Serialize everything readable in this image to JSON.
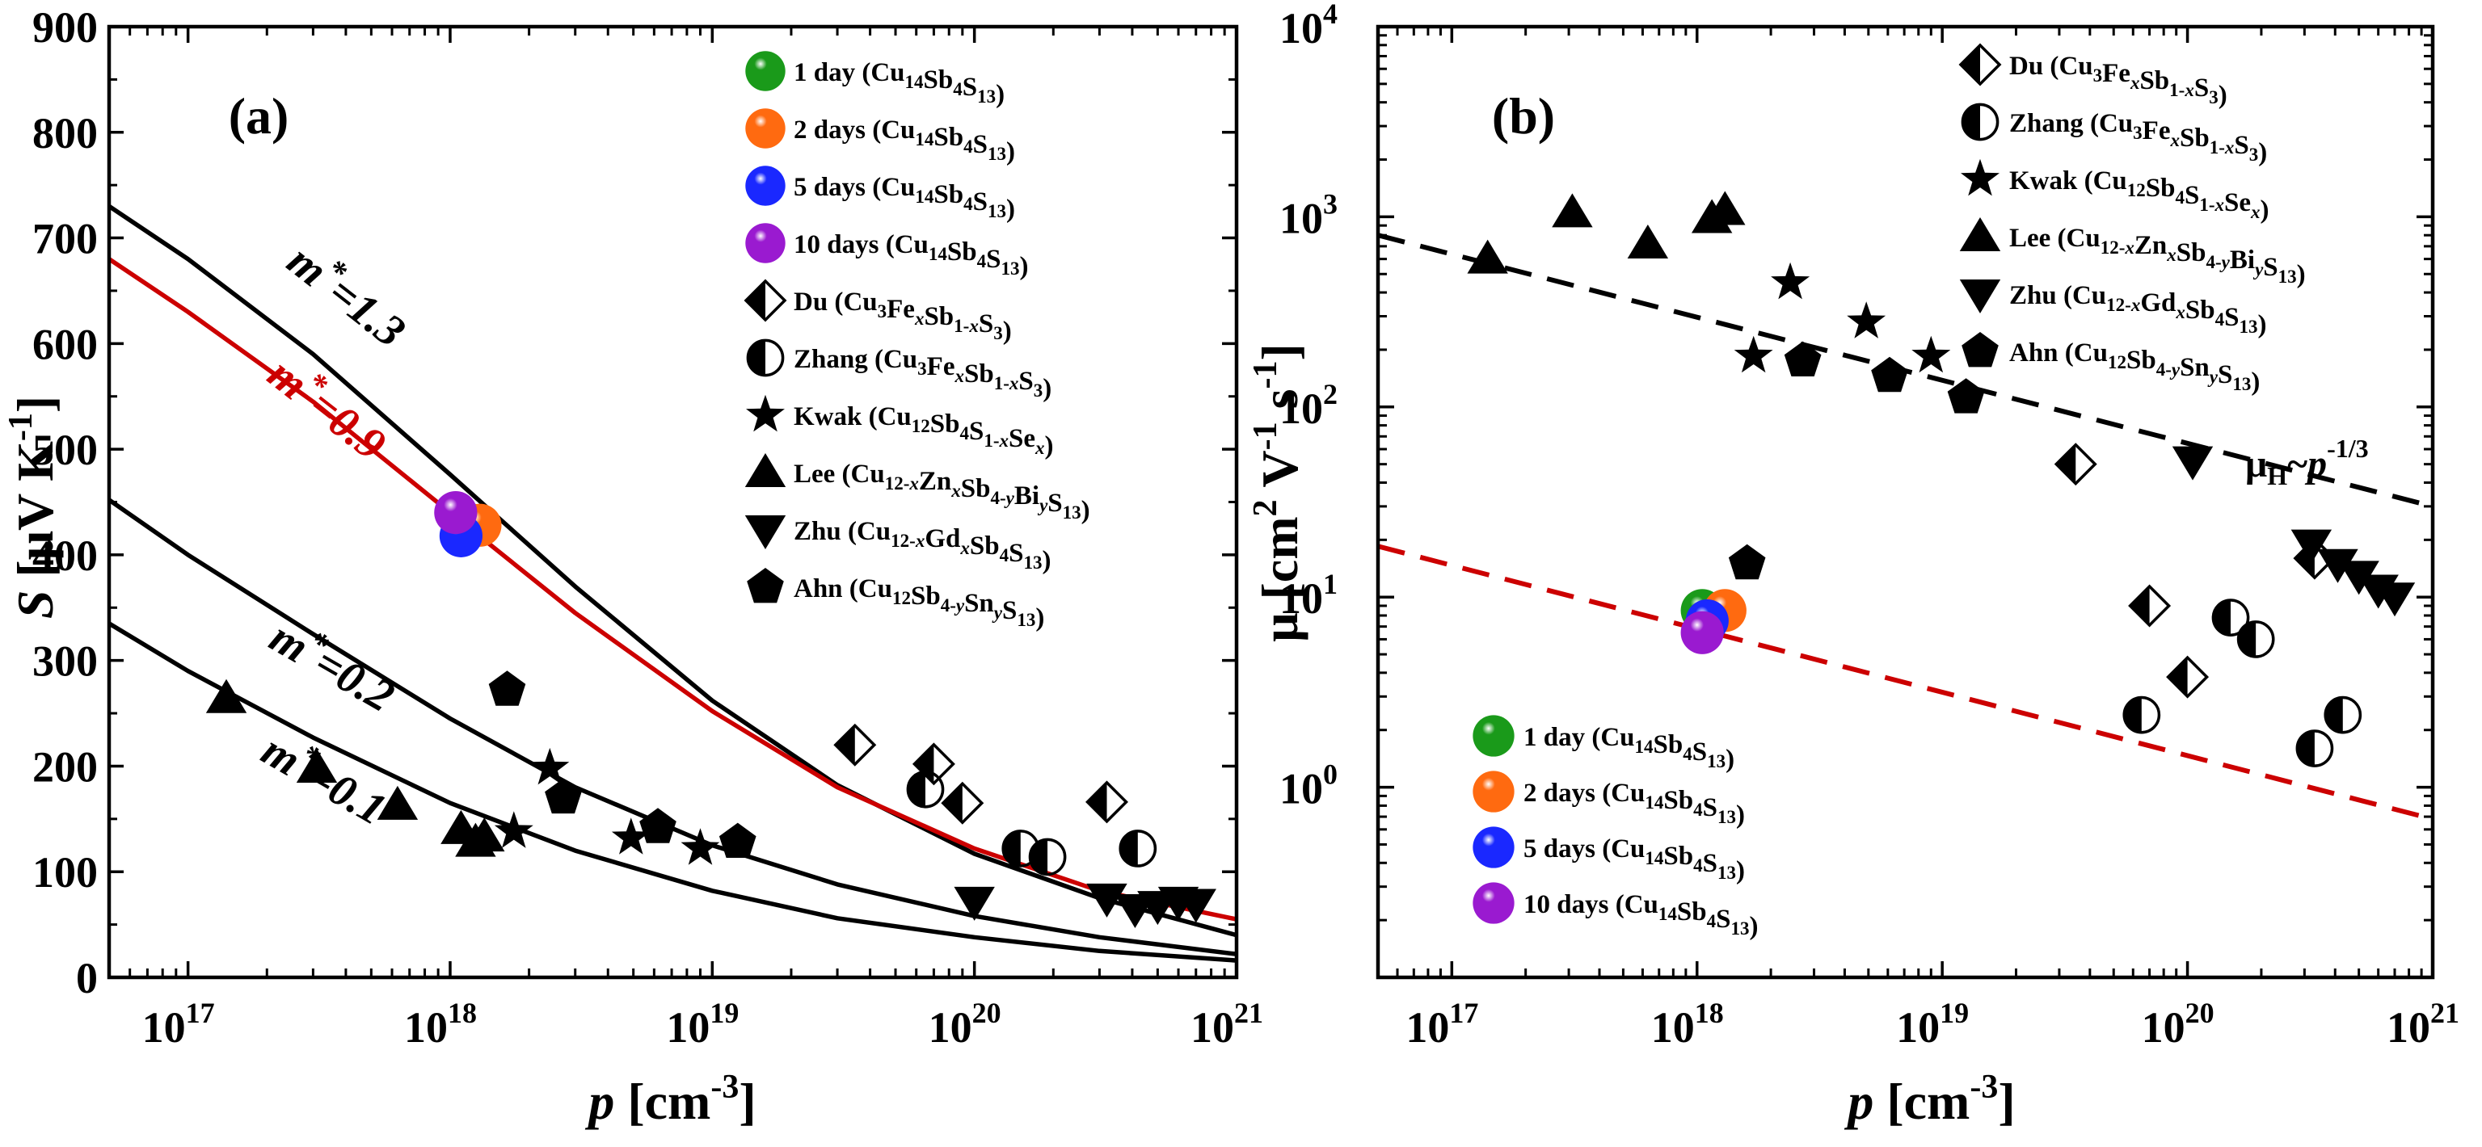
{
  "colors": {
    "black": "#000000",
    "red": "#cc0000",
    "green": "#1a9a1a",
    "orange": "#ff6a10",
    "blue": "#1a28ff",
    "purple": "#9a1ad0"
  },
  "this_work": [
    {
      "label": "1 day",
      "formula": [
        "Cu",
        "14",
        "Sb",
        "4",
        "S",
        "13"
      ],
      "color": "green"
    },
    {
      "label": "2 days",
      "formula": [
        "Cu",
        "14",
        "Sb",
        "4",
        "S",
        "13"
      ],
      "color": "orange"
    },
    {
      "label": "5 days",
      "formula": [
        "Cu",
        "14",
        "Sb",
        "4",
        "S",
        "13"
      ],
      "color": "blue"
    },
    {
      "label": "10 days",
      "formula": [
        "Cu",
        "14",
        "Sb",
        "4",
        "S",
        "13"
      ],
      "color": "purple"
    }
  ],
  "literature": [
    {
      "author": "Du",
      "symbol": "halfdiamond",
      "formula": [
        "Cu",
        "3",
        "Fe",
        "x",
        "Sb",
        "1-x",
        "S",
        "3"
      ]
    },
    {
      "author": "Zhang",
      "symbol": "halfcircle",
      "formula": [
        "Cu",
        "3",
        "Fe",
        "x",
        "Sb",
        "1-x",
        "S",
        "3"
      ]
    },
    {
      "author": "Kwak",
      "symbol": "star",
      "formula": [
        "Cu",
        "12",
        "Sb",
        "4",
        "S",
        "1-x",
        "Se",
        "x"
      ]
    },
    {
      "author": "Lee",
      "symbol": "triangle",
      "formula": [
        "Cu",
        "12-x",
        "Zn",
        "x",
        "Sb",
        "4-y",
        "Bi",
        "y",
        "S",
        "13"
      ]
    },
    {
      "author": "Zhu",
      "symbol": "triangledown",
      "formula": [
        "Cu",
        "12-x",
        "Gd",
        "x",
        "Sb",
        "4",
        "S",
        "13"
      ]
    },
    {
      "author": "Ahn",
      "symbol": "pentagon",
      "formula": [
        "Cu",
        "12",
        "Sb",
        "4-y",
        "Sn",
        "y",
        "S",
        "13"
      ]
    }
  ],
  "chart_data": [
    {
      "id": "a",
      "type": "scatter",
      "panel_label": "(a)",
      "xscale": "log",
      "xlim": [
        5e+16,
        1e+21
      ],
      "ylim": [
        0,
        900
      ],
      "xticks": [
        {
          "v": 1e+17,
          "base": "10",
          "exp": "17"
        },
        {
          "v": 1e+18,
          "base": "10",
          "exp": "18"
        },
        {
          "v": 1e+19,
          "base": "10",
          "exp": "19"
        },
        {
          "v": 1e+20,
          "base": "10",
          "exp": "20"
        },
        {
          "v": 1e+21,
          "base": "10",
          "exp": "21"
        }
      ],
      "yticks": [
        "0",
        "100",
        "200",
        "300",
        "400",
        "500",
        "600",
        "700",
        "800",
        "900"
      ],
      "xlabel": {
        "var": "p",
        "unit": " [cm",
        "exp": "-3",
        "close": "]"
      },
      "ylabel": {
        "var": "S",
        "unit": " [μV K",
        "exp": "-1",
        "close": "]"
      },
      "legend_position": "top-right",
      "curves": [
        {
          "name": "m*=1.3",
          "label_main": "m",
          "label_rest": "=1.3",
          "color": "black",
          "points": [
            [
              5e+16,
              730
            ],
            [
              1e+17,
              680
            ],
            [
              3e+17,
              590
            ],
            [
              1e+18,
              476
            ],
            [
              3e+18,
              370
            ],
            [
              1e+19,
              262
            ],
            [
              3e+19,
              182
            ],
            [
              1e+20,
              117
            ],
            [
              3e+20,
              75
            ],
            [
              1e+21,
              40
            ]
          ]
        },
        {
          "name": "m*=0.9",
          "label_main": "m",
          "label_rest": "=0.9",
          "color": "red",
          "points": [
            [
              5e+16,
              680
            ],
            [
              1e+17,
              630
            ],
            [
              3e+17,
              545
            ],
            [
              1e+18,
              440
            ],
            [
              3e+18,
              345
            ],
            [
              1e+19,
              252
            ],
            [
              3e+19,
              180
            ],
            [
              1e+20,
              122
            ],
            [
              3e+20,
              82
            ],
            [
              1e+21,
              55
            ]
          ]
        },
        {
          "name": "m*=0.2",
          "label_main": "m",
          "label_rest": "=0.2",
          "color": "black",
          "points": [
            [
              5e+16,
              452
            ],
            [
              1e+17,
              400
            ],
            [
              3e+17,
              325
            ],
            [
              1e+18,
              245
            ],
            [
              3e+18,
              180
            ],
            [
              1e+19,
              125
            ],
            [
              3e+19,
              88
            ],
            [
              1e+20,
              58
            ],
            [
              3e+20,
              38
            ],
            [
              1e+21,
              22
            ]
          ]
        },
        {
          "name": "m*=0.1",
          "label_main": "m",
          "label_rest": "=0.1",
          "color": "black",
          "points": [
            [
              5e+16,
              335
            ],
            [
              1e+17,
              290
            ],
            [
              3e+17,
              227
            ],
            [
              1e+18,
              165
            ],
            [
              3e+18,
              120
            ],
            [
              1e+19,
              82
            ],
            [
              3e+19,
              56
            ],
            [
              1e+20,
              38
            ],
            [
              3e+20,
              25
            ],
            [
              1e+21,
              16
            ]
          ]
        }
      ],
      "series": [
        {
          "name": "1 day",
          "symbol": "sphere",
          "color": "green",
          "points": [
            [
              1.15e+18,
              430
            ]
          ]
        },
        {
          "name": "2 days",
          "symbol": "sphere",
          "color": "orange",
          "points": [
            [
              1.3e+18,
              428
            ]
          ]
        },
        {
          "name": "5 days",
          "symbol": "sphere",
          "color": "blue",
          "points": [
            [
              1.1e+18,
              418
            ]
          ]
        },
        {
          "name": "10 days",
          "symbol": "sphere",
          "color": "purple",
          "points": [
            [
              1.05e+18,
              440
            ]
          ]
        },
        {
          "name": "Du",
          "symbol": "halfdiamond",
          "points": [
            [
              3.5e+19,
              220
            ],
            [
              7e+19,
              202
            ],
            [
              9e+19,
              165
            ],
            [
              3.2e+20,
              166
            ]
          ]
        },
        {
          "name": "Zhang",
          "symbol": "halfcircle",
          "points": [
            [
              6.5e+19,
              178
            ],
            [
              1.5e+20,
              122
            ],
            [
              1.9e+20,
              114
            ],
            [
              4.2e+20,
              122
            ]
          ]
        },
        {
          "name": "Kwak",
          "symbol": "star",
          "points": [
            [
              1.75e+18,
              138
            ],
            [
              2.4e+18,
              198
            ],
            [
              4.9e+18,
              132
            ],
            [
              9e+18,
              122
            ]
          ]
        },
        {
          "name": "Lee",
          "symbol": "triangle",
          "points": [
            [
              1.4e+17,
              264
            ],
            [
              3.1e+17,
              198
            ],
            [
              6.3e+17,
              163
            ],
            [
              1.1e+18,
              140
            ],
            [
              1.25e+18,
              128
            ],
            [
              1.35e+18,
              133
            ]
          ]
        },
        {
          "name": "Zhu",
          "symbol": "triangledown",
          "points": [
            [
              1e+20,
              72
            ],
            [
              3.2e+20,
              75
            ],
            [
              4.1e+20,
              65
            ],
            [
              5e+20,
              68
            ],
            [
              6e+20,
              72
            ],
            [
              7e+20,
              70
            ]
          ]
        },
        {
          "name": "Ahn",
          "symbol": "pentagon",
          "points": [
            [
              1.65e+18,
              272
            ],
            [
              2.7e+18,
              170
            ],
            [
              6.2e+18,
              142
            ],
            [
              1.25e+19,
              128
            ]
          ]
        }
      ]
    },
    {
      "id": "b",
      "type": "scatter",
      "panel_label": "(b)",
      "xscale": "log",
      "yscale": "log",
      "xlim": [
        5e+16,
        1e+21
      ],
      "ylim": [
        0.1,
        10000
      ],
      "xticks": [
        {
          "v": 1e+17,
          "base": "10",
          "exp": "17"
        },
        {
          "v": 1e+18,
          "base": "10",
          "exp": "18"
        },
        {
          "v": 1e+19,
          "base": "10",
          "exp": "19"
        },
        {
          "v": 1e+20,
          "base": "10",
          "exp": "20"
        },
        {
          "v": 1e+21,
          "base": "10",
          "exp": "21"
        }
      ],
      "yticks": [
        {
          "v": 1,
          "base": "10",
          "exp": "0"
        },
        {
          "v": 10,
          "base": "10",
          "exp": "1"
        },
        {
          "v": 100,
          "base": "10",
          "exp": "2"
        },
        {
          "v": 1000,
          "base": "10",
          "exp": "3"
        },
        {
          "v": 10000,
          "base": "10",
          "exp": "4"
        }
      ],
      "xlabel": {
        "var": "p",
        "unit": " [cm",
        "exp": "-3",
        "close": "]"
      },
      "ylabel": {
        "var": "μ",
        "unit": " [cm",
        "exp1": "2",
        "mid": " V",
        "exp2": "-1",
        "mid2": " s",
        "exp3": "-1",
        "close": "]"
      },
      "fit_label": {
        "main": "μ",
        "sub": "H",
        "tilde": "~",
        "var": "p",
        "exp": "-1/3"
      },
      "fits": [
        {
          "name": "black dashed",
          "color": "black",
          "points": [
            [
              5e+16,
              800
            ],
            [
              1e+21,
              30
            ]
          ]
        },
        {
          "name": "red dashed",
          "color": "red",
          "points": [
            [
              5e+16,
              18.5
            ],
            [
              1e+21,
              0.68
            ]
          ]
        }
      ],
      "legend_positions": [
        "top-right",
        "bottom-left"
      ],
      "series": [
        {
          "name": "1 day",
          "symbol": "sphere",
          "color": "green",
          "points": [
            [
              1.05e+18,
              8.5
            ]
          ]
        },
        {
          "name": "2 days",
          "symbol": "sphere",
          "color": "orange",
          "points": [
            [
              1.3e+18,
              8.5
            ]
          ]
        },
        {
          "name": "5 days",
          "symbol": "sphere",
          "color": "blue",
          "points": [
            [
              1.1e+18,
              7.5
            ]
          ]
        },
        {
          "name": "10 days",
          "symbol": "sphere",
          "color": "purple",
          "points": [
            [
              1.05e+18,
              6.5
            ]
          ]
        },
        {
          "name": "Du",
          "symbol": "halfdiamond",
          "points": [
            [
              3.5e+19,
              50
            ],
            [
              7e+19,
              9
            ],
            [
              1e+20,
              3.8
            ],
            [
              3.3e+20,
              16
            ]
          ]
        },
        {
          "name": "Zhang",
          "symbol": "halfcircle",
          "points": [
            [
              6.5e+19,
              2.4
            ],
            [
              1.5e+20,
              7.8
            ],
            [
              1.9e+20,
              6
            ],
            [
              3.3e+20,
              1.6
            ],
            [
              4.3e+20,
              2.4
            ]
          ]
        },
        {
          "name": "Kwak",
          "symbol": "star",
          "points": [
            [
              1.7e+18,
              185
            ],
            [
              2.4e+18,
              450
            ],
            [
              4.9e+18,
              280
            ],
            [
              9e+18,
              185
            ]
          ]
        },
        {
          "name": "Lee",
          "symbol": "triangle",
          "points": [
            [
              1.4e+17,
              600
            ],
            [
              3.1e+17,
              1050
            ],
            [
              6.3e+17,
              720
            ],
            [
              1.15e+18,
              980
            ],
            [
              1.3e+18,
              1080
            ]
          ]
        },
        {
          "name": "Zhu",
          "symbol": "triangledown",
          "points": [
            [
              1.05e+20,
              52
            ],
            [
              3.2e+20,
              19
            ],
            [
              4.1e+20,
              15
            ],
            [
              5e+20,
              13
            ],
            [
              6e+20,
              11
            ],
            [
              7e+20,
              10
            ]
          ]
        },
        {
          "name": "Ahn",
          "symbol": "pentagon",
          "points": [
            [
              1.6e+18,
              15
            ],
            [
              2.7e+18,
              175
            ],
            [
              6.1e+18,
              145
            ],
            [
              1.25e+19,
              112
            ]
          ]
        }
      ]
    }
  ]
}
